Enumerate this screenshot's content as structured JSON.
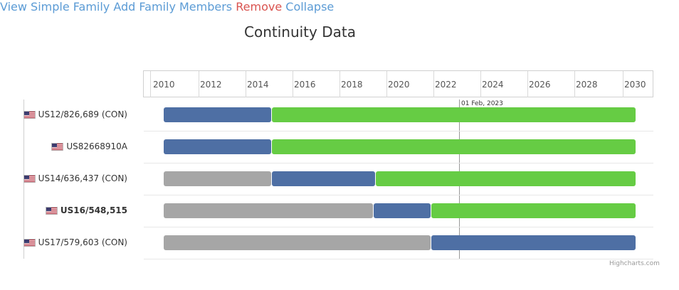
{
  "nav": {
    "view_simple_family": "View Simple Family",
    "add_family_members": "Add Family Members",
    "remove": "Remove",
    "collapse": "Collapse"
  },
  "title": "Continuity Data",
  "chart_data": {
    "type": "gantt",
    "x_ticks": [
      "2010",
      "2012",
      "2014",
      "2016",
      "2018",
      "2020",
      "2022",
      "2024",
      "2026",
      "2028",
      "2030"
    ],
    "xlim": [
      2009.5,
      2031.3
    ],
    "today": {
      "label": "01 Feb, 2023",
      "value": 2023.08
    },
    "colors": {
      "inactive": "#a6a6a6",
      "pending": "#4e6fa4",
      "granted": "#66cc44"
    },
    "rows": [
      {
        "label": "US12/826,689 (CON)",
        "flag": "us-flag-icon",
        "bold": false,
        "segments": [
          {
            "start": 2010.0,
            "end": 2014.7,
            "color": "#4e6fa4"
          },
          {
            "start": 2014.7,
            "end": 2030.5,
            "color": "#66cc44"
          }
        ]
      },
      {
        "label": "US82668910A",
        "flag": "us-flag-icon",
        "bold": false,
        "segments": [
          {
            "start": 2010.0,
            "end": 2014.7,
            "color": "#4e6fa4"
          },
          {
            "start": 2014.7,
            "end": 2030.5,
            "color": "#66cc44"
          }
        ]
      },
      {
        "label": "US14/636,437 (CON)",
        "flag": "us-flag-icon",
        "bold": false,
        "segments": [
          {
            "start": 2010.0,
            "end": 2014.7,
            "color": "#a6a6a6"
          },
          {
            "start": 2014.7,
            "end": 2019.2,
            "color": "#4e6fa4"
          },
          {
            "start": 2019.2,
            "end": 2030.5,
            "color": "#66cc44"
          }
        ]
      },
      {
        "label": "US16/548,515",
        "flag": "us-flag-icon",
        "bold": true,
        "segments": [
          {
            "start": 2010.0,
            "end": 2019.1,
            "color": "#a6a6a6"
          },
          {
            "start": 2019.1,
            "end": 2021.6,
            "color": "#4e6fa4"
          },
          {
            "start": 2021.6,
            "end": 2030.5,
            "color": "#66cc44"
          }
        ]
      },
      {
        "label": "US17/579,603 (CON)",
        "flag": "us-flag-icon",
        "bold": false,
        "segments": [
          {
            "start": 2010.0,
            "end": 2021.6,
            "color": "#a6a6a6"
          },
          {
            "start": 2021.6,
            "end": 2030.5,
            "color": "#4e6fa4"
          }
        ]
      }
    ]
  },
  "credits": "Highcharts.com"
}
